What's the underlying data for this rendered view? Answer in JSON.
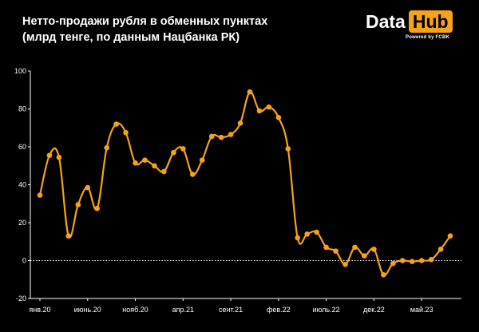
{
  "header": {
    "title_line1": "Нетто-продажи рубля в обменных пунктах",
    "title_line2": "(млрд тенге, по данным Нацбанка РК)"
  },
  "logo": {
    "word1": "Data",
    "word2": "Hub",
    "tagline": "Powered by FCBK"
  },
  "colors": {
    "background": "#000000",
    "line": "#f7a21b",
    "text": "#ffffff",
    "zero_line": "#ffffff"
  },
  "chart_data": {
    "type": "line",
    "title": "Нетто-продажи рубля в обменных пунктах",
    "subtitle": "(млрд тенге, по данным Нацбанка РК)",
    "xlabel": "",
    "ylabel": "",
    "ylim": [
      -20,
      100
    ],
    "y_ticks": [
      -20,
      0,
      20,
      40,
      60,
      80,
      100
    ],
    "x_tick_labels": [
      "янв.20",
      "июнь.20",
      "нояб.20",
      "апр.21",
      "сент.21",
      "фев.22",
      "июль.22",
      "дек.22",
      "май.23"
    ],
    "x_tick_month_index": [
      0,
      5,
      10,
      15,
      20,
      25,
      30,
      35,
      40
    ],
    "grid": false,
    "zero_line": "dotted",
    "series": [
      {
        "values": [
          34.5,
          55.5,
          54.5,
          13,
          29.5,
          38.5,
          27.5,
          59.5,
          72,
          67.5,
          51.5,
          53,
          50,
          47,
          57,
          59,
          45.5,
          53,
          65.5,
          65,
          66.5,
          72.5,
          89,
          79,
          81,
          75.5,
          59,
          12,
          14,
          15,
          7,
          5,
          -2,
          7,
          2.5,
          6,
          -7.5,
          -1.5,
          0,
          -0.5,
          0,
          0.5,
          6,
          13
        ]
      }
    ]
  }
}
